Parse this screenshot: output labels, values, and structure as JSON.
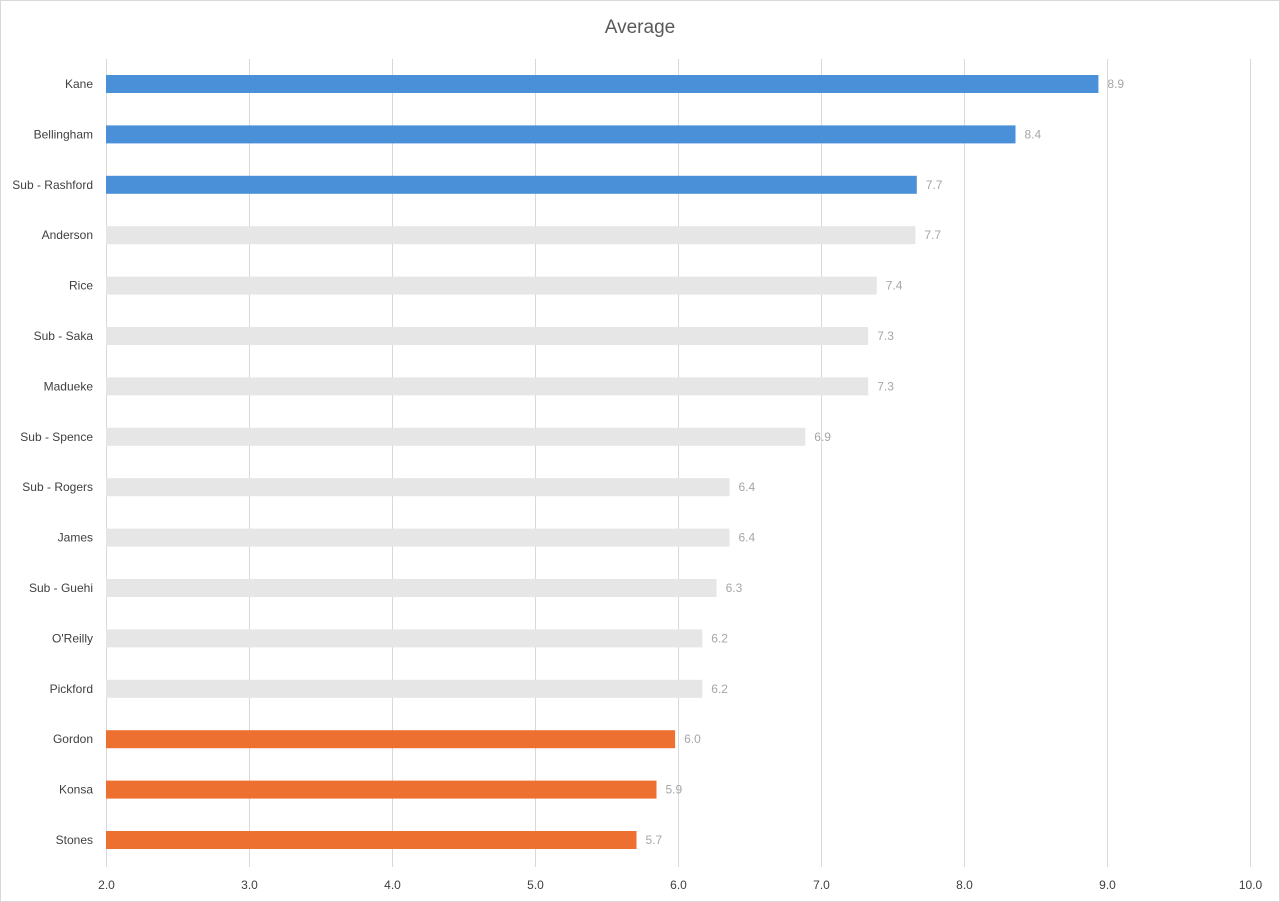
{
  "chart_data": {
    "type": "bar",
    "orientation": "horizontal",
    "title": "Average",
    "xlabel": "",
    "ylabel": "",
    "categories": [
      "Kane",
      "Bellingham",
      "Sub - Rashford",
      "Anderson",
      "Rice",
      "Sub - Saka",
      "Madueke",
      "Sub - Spence",
      "Sub - Rogers",
      "James",
      "Sub - Guehi",
      "O'Reilly",
      "Pickford",
      "Gordon",
      "Konsa",
      "Stones"
    ],
    "values": [
      8.94,
      8.36,
      7.67,
      7.66,
      7.39,
      7.33,
      7.33,
      6.89,
      6.36,
      6.36,
      6.27,
      6.17,
      6.17,
      5.98,
      5.85,
      5.71
    ],
    "value_labels": [
      "8.9",
      "8.4",
      "7.7",
      "7.7",
      "7.4",
      "7.3",
      "7.3",
      "6.9",
      "6.4",
      "6.4",
      "6.3",
      "6.2",
      "6.2",
      "6.0",
      "5.9",
      "5.7"
    ],
    "bar_colors": [
      "#4a90d9",
      "#4a90d9",
      "#4a90d9",
      "#e6e6e6",
      "#e6e6e6",
      "#e6e6e6",
      "#e6e6e6",
      "#e6e6e6",
      "#e6e6e6",
      "#e6e6e6",
      "#e6e6e6",
      "#e6e6e6",
      "#e6e6e6",
      "#ed7030",
      "#ed7030",
      "#ed7030"
    ],
    "xlim": [
      2.0,
      10.0
    ],
    "x_ticks": [
      "2.0",
      "3.0",
      "4.0",
      "5.0",
      "6.0",
      "7.0",
      "8.0",
      "9.0",
      "10.0"
    ],
    "grid": true,
    "legend": "none"
  },
  "colors": {
    "top_highlight": "#4a90d9",
    "bottom_highlight": "#ed7030",
    "neutral": "#e6e6e6",
    "gridline": "#d9d9d9",
    "value_label": "#a6a6a6"
  }
}
